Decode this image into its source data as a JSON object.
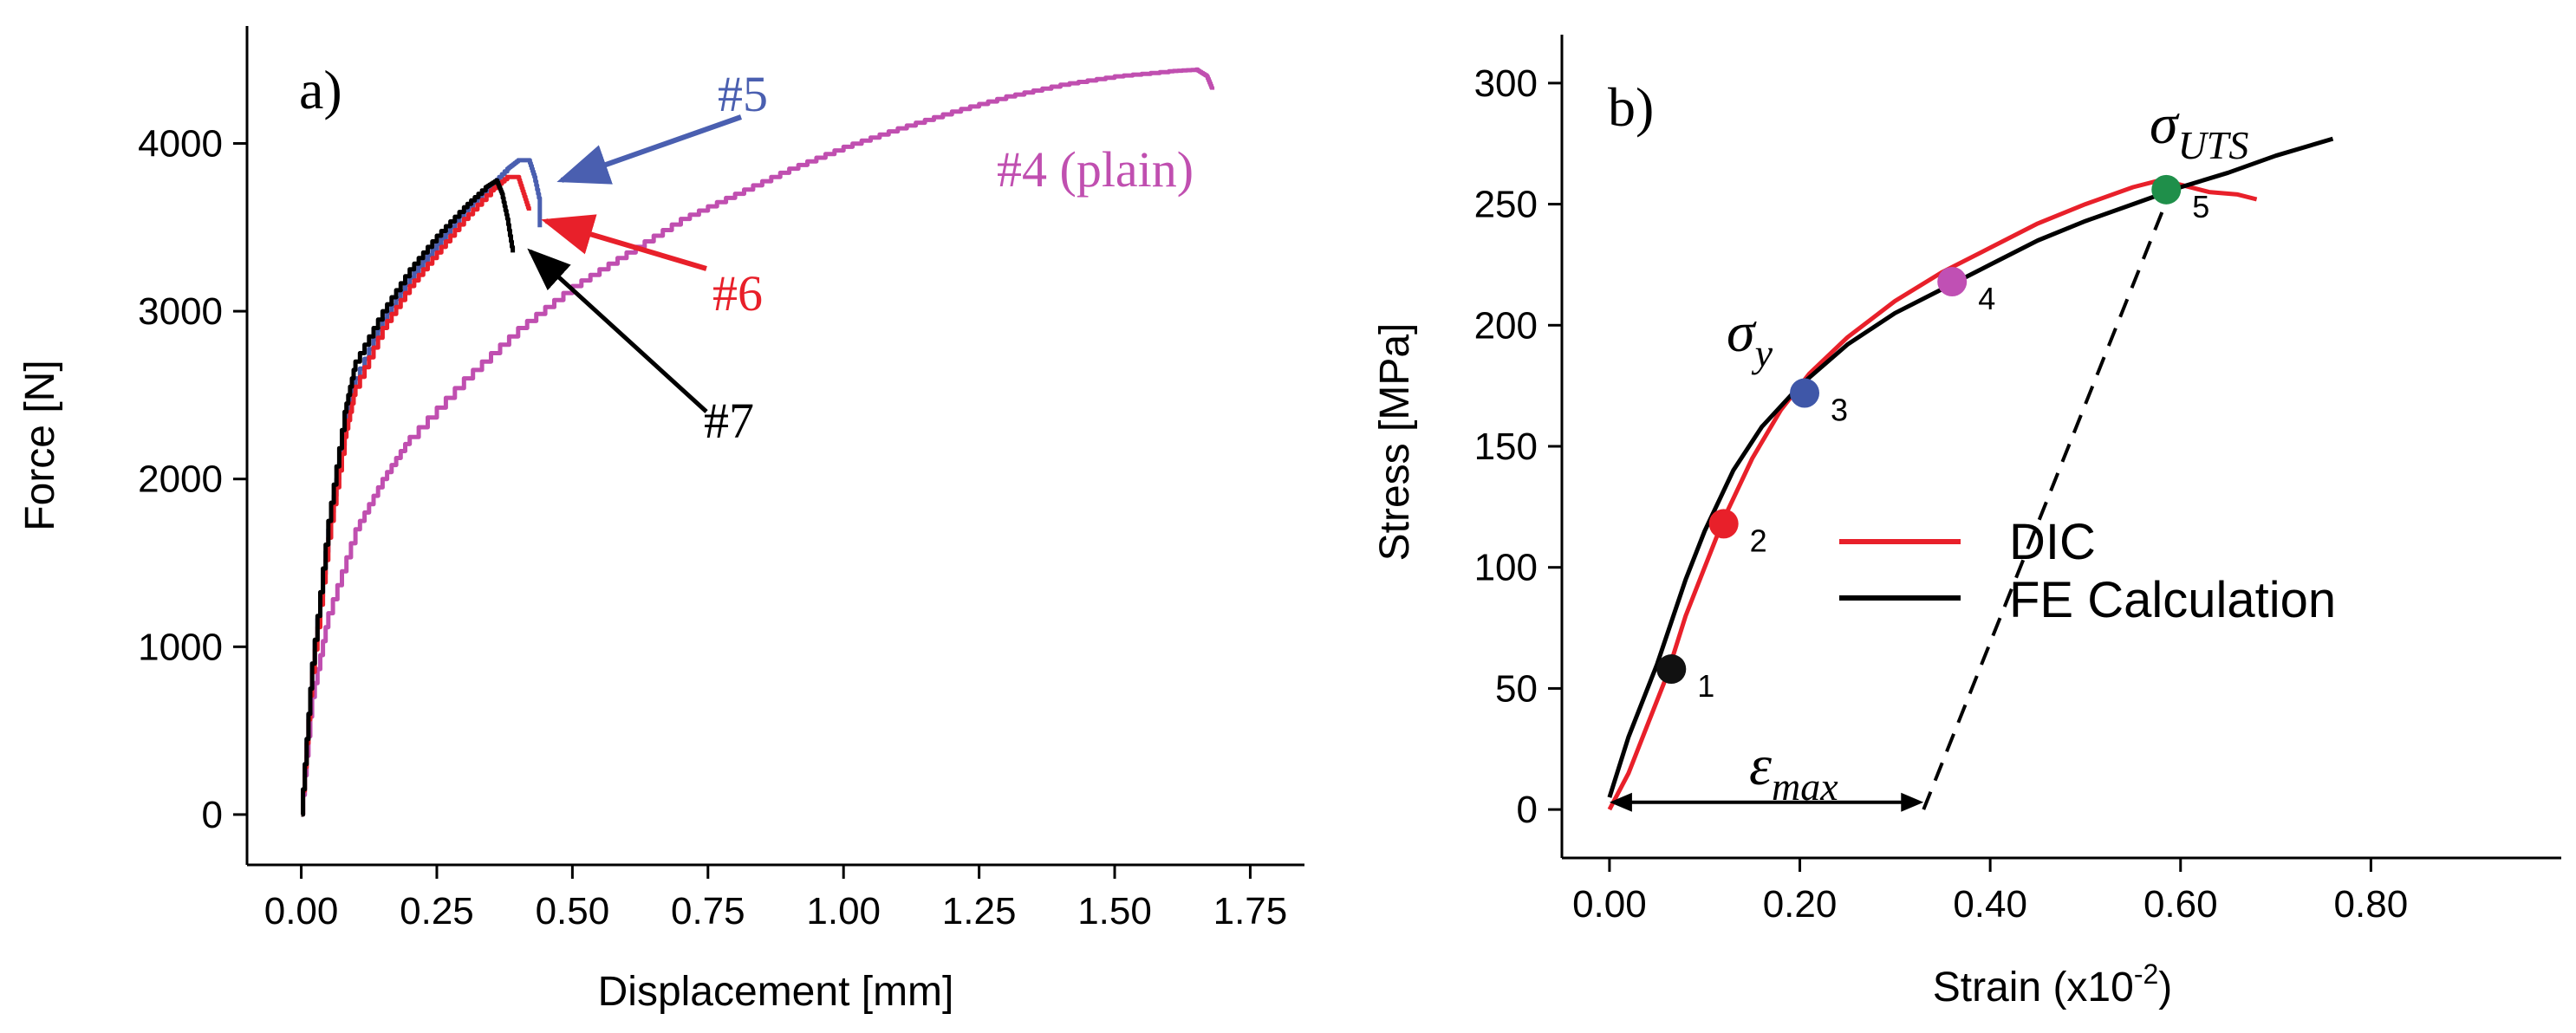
{
  "chart_data": [
    {
      "type": "line",
      "panel": "a)",
      "xlabel": "Displacement [mm]",
      "ylabel": "Force [N]",
      "xlim": [
        -0.1,
        1.85
      ],
      "ylim": [
        -300,
        4700
      ],
      "xticks": [
        "0.00",
        "0.25",
        "0.50",
        "0.75",
        "1.00",
        "1.25",
        "1.50",
        "1.75"
      ],
      "xtick_values": [
        0,
        0.25,
        0.5,
        0.75,
        1.0,
        1.25,
        1.5,
        1.75
      ],
      "yticks": [
        "0",
        "1000",
        "2000",
        "3000",
        "4000"
      ],
      "ytick_values": [
        0,
        1000,
        2000,
        3000,
        4000
      ],
      "series": [
        {
          "name": "#4 (plain)",
          "color": "#c04fb0",
          "x": [
            0,
            0.02,
            0.05,
            0.1,
            0.15,
            0.2,
            0.3,
            0.4,
            0.5,
            0.6,
            0.7,
            0.8,
            0.9,
            1.0,
            1.1,
            1.2,
            1.3,
            1.4,
            1.5,
            1.6,
            1.65,
            1.67,
            1.68
          ],
          "y": [
            0,
            700,
            1200,
            1700,
            2000,
            2250,
            2600,
            2900,
            3150,
            3350,
            3550,
            3700,
            3850,
            3980,
            4090,
            4190,
            4280,
            4350,
            4400,
            4430,
            4440,
            4400,
            4320
          ]
        },
        {
          "name": "#5",
          "color": "#4a5fb0",
          "x": [
            0,
            0.02,
            0.05,
            0.08,
            0.1,
            0.15,
            0.2,
            0.25,
            0.3,
            0.35,
            0.38,
            0.4,
            0.42,
            0.43,
            0.44,
            0.44
          ],
          "y": [
            0,
            900,
            1700,
            2300,
            2600,
            2950,
            3200,
            3400,
            3600,
            3750,
            3850,
            3900,
            3900,
            3800,
            3650,
            3500
          ]
        },
        {
          "name": "#6",
          "color": "#e8202a",
          "x": [
            0,
            0.02,
            0.05,
            0.08,
            0.1,
            0.15,
            0.2,
            0.25,
            0.3,
            0.35,
            0.38,
            0.4,
            0.41,
            0.42
          ],
          "y": [
            0,
            850,
            1650,
            2250,
            2550,
            2900,
            3150,
            3350,
            3550,
            3720,
            3800,
            3800,
            3700,
            3600
          ]
        },
        {
          "name": "#7",
          "color": "#000000",
          "x": [
            0,
            0.02,
            0.05,
            0.08,
            0.1,
            0.15,
            0.2,
            0.25,
            0.3,
            0.34,
            0.36,
            0.37,
            0.38,
            0.39
          ],
          "y": [
            0,
            900,
            1750,
            2400,
            2700,
            3000,
            3250,
            3450,
            3620,
            3740,
            3780,
            3700,
            3550,
            3350
          ]
        }
      ],
      "annotations": [
        {
          "text": "#5",
          "color": "#4a5fb0"
        },
        {
          "text": "#6",
          "color": "#e8202a"
        },
        {
          "text": "#7",
          "color": "#000000"
        },
        {
          "text": "#4 (plain)",
          "color": "#c04fb0"
        }
      ]
    },
    {
      "type": "line",
      "panel": "b)",
      "xlabel": "Strain (x10",
      "xlabel_sup": "-2",
      "xlabel_close": ")",
      "ylabel": "Stress [MPa]",
      "xlim": [
        -0.05,
        1.0
      ],
      "ylim": [
        -20,
        320
      ],
      "xticks": [
        "0.00",
        "0.20",
        "0.40",
        "0.60",
        "0.80"
      ],
      "xtick_values": [
        0,
        0.2,
        0.4,
        0.6,
        0.8
      ],
      "yticks": [
        "0",
        "50",
        "100",
        "150",
        "200",
        "250",
        "300"
      ],
      "ytick_values": [
        0,
        50,
        100,
        150,
        200,
        250,
        300
      ],
      "series": [
        {
          "name": "DIC",
          "color": "#e8202a",
          "x": [
            0,
            0.02,
            0.04,
            0.06,
            0.08,
            0.1,
            0.12,
            0.15,
            0.18,
            0.21,
            0.25,
            0.3,
            0.35,
            0.4,
            0.45,
            0.5,
            0.55,
            0.58,
            0.6,
            0.63,
            0.66,
            0.68
          ],
          "y": [
            0,
            15,
            35,
            55,
            80,
            100,
            120,
            145,
            165,
            180,
            195,
            210,
            222,
            232,
            242,
            250,
            257,
            260,
            258,
            255,
            254,
            252
          ]
        },
        {
          "name": "FE Calculation",
          "color": "#000000",
          "x": [
            0,
            0.02,
            0.05,
            0.08,
            0.1,
            0.13,
            0.16,
            0.2,
            0.25,
            0.3,
            0.35,
            0.4,
            0.45,
            0.5,
            0.55,
            0.6,
            0.65,
            0.7,
            0.76
          ],
          "y": [
            5,
            30,
            60,
            95,
            115,
            140,
            158,
            175,
            192,
            205,
            215,
            225,
            235,
            243,
            250,
            257,
            263,
            270,
            277
          ]
        }
      ],
      "points": [
        {
          "label": "1",
          "x": 0.065,
          "y": 58,
          "color": "#111111"
        },
        {
          "label": "2",
          "x": 0.12,
          "y": 118,
          "color": "#e8202a"
        },
        {
          "label": "3",
          "x": 0.205,
          "y": 172,
          "color": "#3f57a8"
        },
        {
          "label": "4",
          "x": 0.36,
          "y": 218,
          "color": "#c050b4"
        },
        {
          "label": "5",
          "x": 0.585,
          "y": 256,
          "color": "#1f8f4a"
        }
      ],
      "unloading_line": {
        "x": [
          0.33,
          0.59
        ],
        "y": [
          0,
          256
        ]
      },
      "annotations": {
        "sigma_y": "σ",
        "sigma_y_sub": "y",
        "sigma_uts": "σ",
        "sigma_uts_sub": "UTS",
        "epsilon": "ε",
        "epsilon_sub": "max"
      },
      "legend": [
        {
          "name": "DIC",
          "color": "#e8202a"
        },
        {
          "name": "FE Calculation",
          "color": "#000000"
        }
      ]
    }
  ]
}
